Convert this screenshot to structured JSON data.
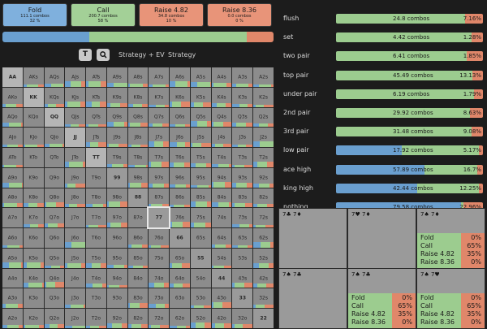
{
  "colors": {
    "fold": "#6a9fcf",
    "call": "#9ccc8f",
    "raise_small": "#e0876a",
    "raise_big": "#e0876a",
    "grey": "#8a8a8a",
    "grid_bg": "#2a2a2a"
  },
  "actions": [
    {
      "title": "Fold",
      "combos": "111.1 combos",
      "pct": "32 %",
      "color": "#7fb0dd"
    },
    {
      "title": "Call",
      "combos": "200.7 combos",
      "pct": "58 %",
      "color": "#a3d097"
    },
    {
      "title": "Raise 4.82",
      "combos": "34.8 combos",
      "pct": "10 %",
      "color": "#e89479"
    },
    {
      "title": "Raise 8.36",
      "combos": "0.0 combos",
      "pct": "0 %",
      "color": "#e89479"
    }
  ],
  "freq_bar": {
    "fold": 32,
    "call": 58,
    "raise": 10
  },
  "toolbar": {
    "t_label": "T",
    "search_icon": "search-icon",
    "strategy_ev": "Strategy + EV",
    "strategy": "Strategy"
  },
  "grid": {
    "rows": [
      [
        "AA",
        "AKs",
        "AQs",
        "AJs",
        "ATs",
        "A9s",
        "A8s",
        "A7s",
        "A6s",
        "A5s",
        "A4s",
        "A3s",
        "A2s"
      ],
      [
        "AKo",
        "KK",
        "KQs",
        "KJs",
        "KTs",
        "K9s",
        "K8s",
        "K7s",
        "K6s",
        "K5s",
        "K4s",
        "K3s",
        "K2s"
      ],
      [
        "AQo",
        "KQo",
        "QQ",
        "QJs",
        "QTs",
        "Q9s",
        "Q8s",
        "Q7s",
        "Q6s",
        "Q5s",
        "Q4s",
        "Q3s",
        "Q2s"
      ],
      [
        "AJo",
        "KJo",
        "QJo",
        "JJ",
        "JTs",
        "J9s",
        "J8s",
        "J7s",
        "J6s",
        "J5s",
        "J4s",
        "J3s",
        "J2s"
      ],
      [
        "ATo",
        "KTo",
        "QTo",
        "JTo",
        "TT",
        "T9s",
        "T8s",
        "T7s",
        "T6s",
        "T5s",
        "T4s",
        "T3s",
        "T2s"
      ],
      [
        "A9o",
        "K9o",
        "Q9o",
        "J9o",
        "T9o",
        "99",
        "98s",
        "97s",
        "96s",
        "95s",
        "94s",
        "93s",
        "92s"
      ],
      [
        "A8o",
        "K8o",
        "Q8o",
        "J8o",
        "T8o",
        "98o",
        "88",
        "87s",
        "86s",
        "85s",
        "84s",
        "83s",
        "82s"
      ],
      [
        "A7o",
        "K7o",
        "Q7o",
        "J7o",
        "T7o",
        "97o",
        "87o",
        "77",
        "76s",
        "75s",
        "74s",
        "73s",
        "72s"
      ],
      [
        "A6o",
        "K6o",
        "Q6o",
        "J6o",
        "T6o",
        "96o",
        "86o",
        "76o",
        "66",
        "65s",
        "64s",
        "63s",
        "62s"
      ],
      [
        "A5o",
        "K5o",
        "Q5o",
        "J5o",
        "T5o",
        "95o",
        "85o",
        "75o",
        "65o",
        "55",
        "54s",
        "53s",
        "52s"
      ],
      [
        "A4o",
        "K4o",
        "Q4o",
        "J4o",
        "T4o",
        "94o",
        "84o",
        "74o",
        "64o",
        "54o",
        "44",
        "43s",
        "42s"
      ],
      [
        "A3o",
        "K3o",
        "Q3o",
        "J3o",
        "T3o",
        "93o",
        "83o",
        "73o",
        "63o",
        "53o",
        "43o",
        "33",
        "32s"
      ],
      [
        "A2o",
        "K2o",
        "Q2o",
        "J2o",
        "T2o",
        "92o",
        "82o",
        "72o",
        "62o",
        "52o",
        "42o",
        "32o",
        "22"
      ]
    ]
  },
  "stats": [
    {
      "name": "flush",
      "combos": "24.8 combos",
      "pct": "7.16%",
      "fold": 0,
      "call": 88,
      "raise": 12
    },
    {
      "name": "set",
      "combos": "4.42 combos",
      "pct": "1.28%",
      "fold": 0,
      "call": 92,
      "raise": 8
    },
    {
      "name": "two pair",
      "combos": "6.41 combos",
      "pct": "1.85%",
      "fold": 0,
      "call": 89,
      "raise": 11
    },
    {
      "name": "top pair",
      "combos": "45.49 combos",
      "pct": "13.13%",
      "fold": 0,
      "call": 93,
      "raise": 7
    },
    {
      "name": "under pair",
      "combos": "6.19 combos",
      "pct": "1.79%",
      "fold": 0,
      "call": 94,
      "raise": 6
    },
    {
      "name": "2nd pair",
      "combos": "29.92 combos",
      "pct": "8.63%",
      "fold": 0,
      "call": 91,
      "raise": 9
    },
    {
      "name": "3rd pair",
      "combos": "31.48 combos",
      "pct": "9.08%",
      "fold": 0,
      "call": 92,
      "raise": 8
    },
    {
      "name": "low pair",
      "combos": "17.92 combos",
      "pct": "5.17%",
      "fold": 45,
      "call": 52,
      "raise": 3
    },
    {
      "name": "ace high",
      "combos": "57.89 combos",
      "pct": "16.7%",
      "fold": 60,
      "call": 36,
      "raise": 4
    },
    {
      "name": "king high",
      "combos": "42.44 combos",
      "pct": "12.25%",
      "fold": 55,
      "call": 42,
      "raise": 3
    },
    {
      "name": "nothing",
      "combos": "79.58 combos",
      "pct": "22.96%",
      "fold": 85,
      "call": 2,
      "raise": 13
    }
  ],
  "combo_panels": [
    {
      "cards": "7♣ 7♦",
      "show": false,
      "call": 0,
      "raise": 0
    },
    {
      "cards": "7♥ 7♦",
      "show": false,
      "call": 0,
      "raise": 0
    },
    {
      "cards": "7♠ 7♦",
      "show": true,
      "lines": [
        "Fold",
        "Call",
        "Raise 4.82",
        "Raise 8.36"
      ],
      "pcts": [
        "0%",
        "65%",
        "35%",
        "0%"
      ],
      "call": 65,
      "raise": 35
    },
    {
      "cards": "7♠ 7♣",
      "show": false,
      "call": 0,
      "raise": 0
    },
    {
      "cards": "7♠ 7♣",
      "show": true,
      "lines": [
        "Fold",
        "Call",
        "Raise 4.82",
        "Raise 8.36"
      ],
      "pcts": [
        "0%",
        "65%",
        "35%",
        "0%"
      ],
      "call": 65,
      "raise": 35
    },
    {
      "cards": "7♠ 7♥",
      "show": true,
      "lines": [
        "Fold",
        "Call",
        "Raise 4.82",
        "Raise 8.36"
      ],
      "pcts": [
        "0%",
        "65%",
        "35%",
        "0%"
      ],
      "call": 65,
      "raise": 35
    }
  ]
}
